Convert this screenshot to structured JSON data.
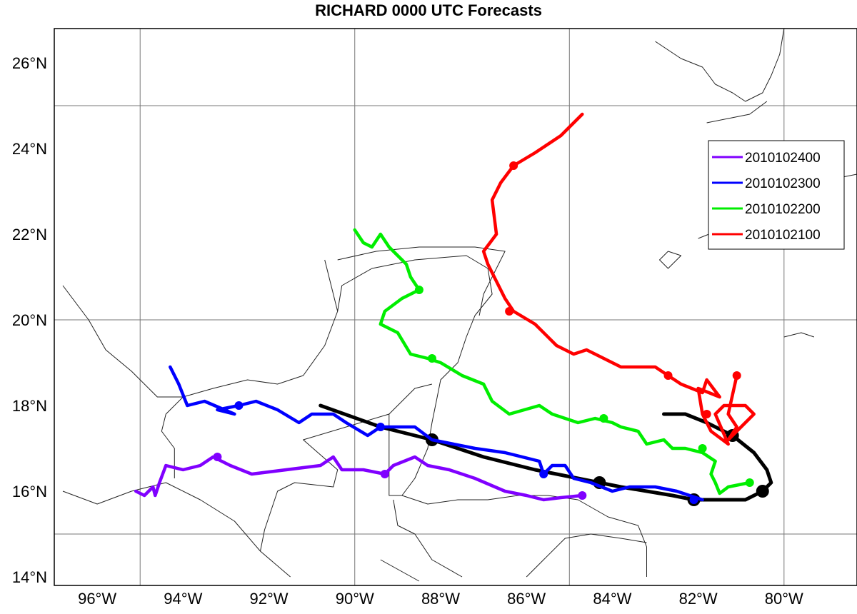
{
  "title": "RICHARD 0000 UTC Forecasts",
  "chart_data": {
    "type": "map-tracks",
    "title": "RICHARD 0000 UTC Forecasts",
    "projection": "lat-lon",
    "xlim": [
      -97.0,
      -78.3
    ],
    "ylim": [
      13.8,
      26.8
    ],
    "x_ticks": [
      {
        "value": -96,
        "label": "96°W"
      },
      {
        "value": -94,
        "label": "94°W"
      },
      {
        "value": -92,
        "label": "92°W"
      },
      {
        "value": -90,
        "label": "90°W"
      },
      {
        "value": -88,
        "label": "88°W"
      },
      {
        "value": -86,
        "label": "86°W"
      },
      {
        "value": -84,
        "label": "84°W"
      },
      {
        "value": -82,
        "label": "82°W"
      },
      {
        "value": -80,
        "label": "80°W"
      }
    ],
    "y_ticks": [
      {
        "value": 14,
        "label": "14°N"
      },
      {
        "value": 16,
        "label": "16°N"
      },
      {
        "value": 18,
        "label": "18°N"
      },
      {
        "value": 20,
        "label": "20°N"
      },
      {
        "value": 22,
        "label": "22°N"
      },
      {
        "value": 24,
        "label": "24°N"
      },
      {
        "value": 26,
        "label": "26°N"
      }
    ],
    "grid": {
      "lon": [
        -95,
        -90,
        -85,
        -80
      ],
      "lat": [
        15,
        20,
        25
      ]
    },
    "legend_position": "top-right",
    "best_track": {
      "color": "#000000",
      "points": [
        [
          -82.8,
          17.8
        ],
        [
          -82.3,
          17.8
        ],
        [
          -81.8,
          17.6
        ],
        [
          -81.2,
          17.3
        ],
        [
          -80.7,
          16.9
        ],
        [
          -80.4,
          16.5
        ],
        [
          -80.3,
          16.2
        ],
        [
          -80.5,
          16.0
        ],
        [
          -80.9,
          15.8
        ],
        [
          -82.1,
          15.8
        ],
        [
          -82.6,
          15.9
        ],
        [
          -83.8,
          16.1
        ],
        [
          -84.3,
          16.2
        ],
        [
          -85.8,
          16.5
        ],
        [
          -87.0,
          16.8
        ],
        [
          -88.2,
          17.2
        ],
        [
          -89.4,
          17.5
        ],
        [
          -90.8,
          18.0
        ]
      ],
      "markers": [
        [
          -81.2,
          17.3
        ],
        [
          -80.5,
          16.0
        ],
        [
          -82.1,
          15.8
        ],
        [
          -84.3,
          16.2
        ],
        [
          -88.2,
          17.2
        ]
      ]
    },
    "series": [
      {
        "name": "2010102400",
        "color": "#8000ff",
        "points": [
          [
            -84.7,
            15.9
          ],
          [
            -85.2,
            15.85
          ],
          [
            -85.6,
            15.8
          ],
          [
            -86.0,
            15.9
          ],
          [
            -86.5,
            16.0
          ],
          [
            -87.2,
            16.3
          ],
          [
            -87.8,
            16.5
          ],
          [
            -88.3,
            16.6
          ],
          [
            -88.6,
            16.8
          ],
          [
            -89.1,
            16.6
          ],
          [
            -89.3,
            16.4
          ],
          [
            -89.8,
            16.5
          ],
          [
            -90.3,
            16.5
          ],
          [
            -90.5,
            16.8
          ],
          [
            -90.8,
            16.6
          ],
          [
            -92.4,
            16.4
          ],
          [
            -92.9,
            16.6
          ],
          [
            -93.3,
            16.8
          ],
          [
            -93.6,
            16.6
          ],
          [
            -94.0,
            16.5
          ],
          [
            -94.4,
            16.6
          ],
          [
            -94.55,
            16.2
          ],
          [
            -94.65,
            15.9
          ],
          [
            -94.7,
            16.1
          ],
          [
            -94.9,
            15.9
          ],
          [
            -95.1,
            16.0
          ]
        ],
        "markers": [
          [
            -84.7,
            15.9
          ],
          [
            -89.3,
            16.4
          ],
          [
            -93.2,
            16.8
          ]
        ]
      },
      {
        "name": "2010102300",
        "color": "#0000ff",
        "points": [
          [
            -81.9,
            15.8
          ],
          [
            -82.2,
            15.9
          ],
          [
            -82.5,
            16.0
          ],
          [
            -83.0,
            16.1
          ],
          [
            -83.6,
            16.1
          ],
          [
            -84.0,
            16.0
          ],
          [
            -84.5,
            16.2
          ],
          [
            -84.9,
            16.3
          ],
          [
            -85.1,
            16.6
          ],
          [
            -85.4,
            16.6
          ],
          [
            -85.6,
            16.4
          ],
          [
            -85.7,
            16.7
          ],
          [
            -86.5,
            16.9
          ],
          [
            -87.2,
            17.0
          ],
          [
            -88.2,
            17.2
          ],
          [
            -88.6,
            17.5
          ],
          [
            -89.4,
            17.5
          ],
          [
            -89.7,
            17.3
          ],
          [
            -90.2,
            17.6
          ],
          [
            -90.5,
            17.8
          ],
          [
            -91.0,
            17.8
          ],
          [
            -91.3,
            17.6
          ],
          [
            -91.8,
            17.9
          ],
          [
            -92.3,
            18.1
          ],
          [
            -92.7,
            18.0
          ],
          [
            -93.2,
            17.9
          ],
          [
            -92.8,
            17.8
          ],
          [
            -93.5,
            18.1
          ],
          [
            -93.9,
            18.0
          ],
          [
            -94.1,
            18.5
          ],
          [
            -94.3,
            18.9
          ]
        ],
        "markers": [
          [
            -82.1,
            15.8
          ],
          [
            -85.6,
            16.4
          ],
          [
            -89.4,
            17.5
          ],
          [
            -92.7,
            18.0
          ]
        ]
      },
      {
        "name": "2010102200",
        "color": "#00ee00",
        "points": [
          [
            -80.8,
            16.2
          ],
          [
            -81.3,
            16.1
          ],
          [
            -81.5,
            15.95
          ],
          [
            -81.6,
            16.2
          ],
          [
            -81.7,
            16.4
          ],
          [
            -81.6,
            16.7
          ],
          [
            -81.9,
            16.9
          ],
          [
            -82.3,
            17.0
          ],
          [
            -82.6,
            17.0
          ],
          [
            -82.8,
            17.2
          ],
          [
            -83.2,
            17.1
          ],
          [
            -83.4,
            17.4
          ],
          [
            -83.8,
            17.5
          ],
          [
            -84.0,
            17.6
          ],
          [
            -84.4,
            17.7
          ],
          [
            -84.8,
            17.6
          ],
          [
            -85.4,
            17.8
          ],
          [
            -85.7,
            18.0
          ],
          [
            -86.4,
            17.8
          ],
          [
            -86.8,
            18.1
          ],
          [
            -87.0,
            18.5
          ],
          [
            -87.5,
            18.7
          ],
          [
            -88.0,
            19.0
          ],
          [
            -88.3,
            19.1
          ],
          [
            -88.7,
            19.2
          ],
          [
            -89.0,
            19.7
          ],
          [
            -89.2,
            19.8
          ],
          [
            -89.4,
            19.9
          ],
          [
            -89.3,
            20.2
          ],
          [
            -88.9,
            20.5
          ],
          [
            -88.5,
            20.7
          ],
          [
            -88.7,
            21.0
          ],
          [
            -88.8,
            21.3
          ],
          [
            -89.2,
            21.7
          ],
          [
            -89.4,
            22.0
          ],
          [
            -89.6,
            21.7
          ],
          [
            -89.8,
            21.8
          ],
          [
            -90.0,
            22.1
          ]
        ],
        "markers": [
          [
            -80.8,
            16.2
          ],
          [
            -81.9,
            17.0
          ],
          [
            -84.2,
            17.7
          ],
          [
            -88.2,
            19.1
          ],
          [
            -88.5,
            20.7
          ]
        ]
      },
      {
        "name": "2010102100",
        "color": "#ff0000",
        "points": [
          [
            -81.1,
            18.7
          ],
          [
            -81.3,
            17.8
          ],
          [
            -81.1,
            17.5
          ],
          [
            -81.3,
            17.2
          ],
          [
            -81.0,
            17.5
          ],
          [
            -80.7,
            17.8
          ],
          [
            -80.9,
            18.0
          ],
          [
            -81.4,
            18.0
          ],
          [
            -81.6,
            17.8
          ],
          [
            -81.3,
            17.1
          ],
          [
            -81.7,
            17.4
          ],
          [
            -81.9,
            17.8
          ],
          [
            -82.0,
            18.4
          ],
          [
            -81.5,
            18.2
          ],
          [
            -81.8,
            18.6
          ],
          [
            -81.9,
            18.3
          ],
          [
            -82.4,
            18.5
          ],
          [
            -82.7,
            18.7
          ],
          [
            -83.0,
            18.9
          ],
          [
            -83.8,
            18.9
          ],
          [
            -84.2,
            19.1
          ],
          [
            -84.6,
            19.3
          ],
          [
            -84.9,
            19.2
          ],
          [
            -85.3,
            19.4
          ],
          [
            -85.8,
            19.9
          ],
          [
            -86.3,
            20.2
          ],
          [
            -86.5,
            20.5
          ],
          [
            -86.7,
            20.9
          ],
          [
            -86.9,
            21.3
          ],
          [
            -87.0,
            21.6
          ],
          [
            -86.7,
            22.0
          ],
          [
            -86.8,
            22.8
          ],
          [
            -86.6,
            23.2
          ],
          [
            -86.3,
            23.6
          ],
          [
            -85.8,
            23.9
          ],
          [
            -85.2,
            24.3
          ],
          [
            -84.7,
            24.8
          ]
        ],
        "markers": [
          [
            -81.1,
            18.7
          ],
          [
            -81.8,
            17.8
          ],
          [
            -82.7,
            18.7
          ],
          [
            -86.4,
            20.2
          ],
          [
            -86.3,
            23.6
          ]
        ]
      }
    ],
    "coastlines": [
      [
        [
          -96.8,
          20.8
        ],
        [
          -96.2,
          20.0
        ],
        [
          -95.8,
          19.3
        ],
        [
          -95.2,
          18.8
        ],
        [
          -94.6,
          18.2
        ],
        [
          -94.0,
          18.2
        ],
        [
          -93.3,
          18.4
        ],
        [
          -92.5,
          18.6
        ],
        [
          -91.8,
          18.5
        ],
        [
          -91.2,
          18.7
        ],
        [
          -90.7,
          19.4
        ],
        [
          -90.4,
          20.2
        ],
        [
          -90.3,
          20.8
        ],
        [
          -89.6,
          21.2
        ],
        [
          -88.6,
          21.4
        ],
        [
          -87.4,
          21.5
        ],
        [
          -86.9,
          21.2
        ],
        [
          -86.8,
          20.6
        ],
        [
          -87.2,
          20.1
        ],
        [
          -87.4,
          19.6
        ],
        [
          -87.6,
          19.0
        ],
        [
          -88.0,
          18.6
        ],
        [
          -88.1,
          18.1
        ],
        [
          -88.2,
          17.6
        ],
        [
          -88.3,
          17.0
        ],
        [
          -88.6,
          16.3
        ],
        [
          -88.9,
          15.9
        ],
        [
          -88.3,
          15.7
        ],
        [
          -87.6,
          15.8
        ],
        [
          -86.9,
          15.8
        ],
        [
          -86.2,
          15.9
        ],
        [
          -85.5,
          15.9
        ],
        [
          -84.8,
          15.8
        ],
        [
          -84.1,
          15.4
        ],
        [
          -83.4,
          15.2
        ],
        [
          -83.2,
          14.7
        ],
        [
          -83.2,
          14.0
        ]
      ],
      [
        [
          -96.8,
          16.0
        ],
        [
          -96.0,
          15.7
        ],
        [
          -95.2,
          16.0
        ],
        [
          -94.4,
          16.2
        ],
        [
          -93.6,
          15.8
        ],
        [
          -92.8,
          15.3
        ],
        [
          -92.2,
          14.6
        ],
        [
          -91.5,
          14.0
        ]
      ]
    ],
    "borders": [
      [
        [
          -94.0,
          18.2
        ],
        [
          -94.4,
          17.8
        ],
        [
          -94.5,
          17.4
        ],
        [
          -94.2,
          17.0
        ],
        [
          -94.2,
          16.3
        ]
      ],
      [
        [
          -92.2,
          14.6
        ],
        [
          -92.1,
          15.1
        ],
        [
          -91.8,
          16.0
        ],
        [
          -91.4,
          16.2
        ],
        [
          -90.5,
          16.1
        ],
        [
          -90.4,
          16.5
        ],
        [
          -91.2,
          17.2
        ],
        [
          -89.2,
          17.8
        ],
        [
          -89.2,
          17.0
        ],
        [
          -89.2,
          15.9
        ],
        [
          -88.9,
          15.9
        ]
      ],
      [
        [
          -90.4,
          20.2
        ],
        [
          -90.7,
          21.4
        ]
      ],
      [
        [
          -89.2,
          17.8
        ],
        [
          -88.6,
          18.4
        ],
        [
          -88.2,
          18.5
        ]
      ],
      [
        [
          -90.4,
          21.4
        ],
        [
          -89.5,
          21.6
        ],
        [
          -88.5,
          21.7
        ],
        [
          -87.2,
          21.7
        ],
        [
          -86.5,
          21.6
        ],
        [
          -87.0,
          20.6
        ],
        [
          -87.1,
          20.1
        ]
      ],
      [
        [
          -89.1,
          15.8
        ],
        [
          -89.0,
          15.2
        ],
        [
          -88.6,
          15.0
        ],
        [
          -88.2,
          14.4
        ],
        [
          -87.5,
          14.0
        ]
      ],
      [
        [
          -89.4,
          14.4
        ],
        [
          -88.5,
          13.9
        ]
      ],
      [
        [
          -86.0,
          14.0
        ],
        [
          -85.6,
          14.4
        ],
        [
          -85.1,
          14.9
        ],
        [
          -84.5,
          15.0
        ],
        [
          -83.8,
          14.9
        ],
        [
          -83.2,
          14.8
        ]
      ]
    ],
    "florida": [
      [
        -83.0,
        26.5
      ],
      [
        -82.4,
        26.1
      ],
      [
        -81.9,
        25.9
      ],
      [
        -81.6,
        25.5
      ],
      [
        -81.2,
        25.3
      ],
      [
        -80.9,
        25.1
      ],
      [
        -80.5,
        25.3
      ],
      [
        -80.3,
        25.7
      ],
      [
        -80.1,
        26.2
      ],
      [
        -80.0,
        26.8
      ]
    ],
    "florida_keys": [
      [
        -81.8,
        24.6
      ],
      [
        -81.3,
        24.7
      ],
      [
        -80.8,
        24.8
      ],
      [
        -80.4,
        25.1
      ]
    ],
    "cuba": [
      [
        -82.0,
        21.9
      ],
      [
        -81.5,
        22.1
      ],
      [
        -80.8,
        22.5
      ],
      [
        -80.3,
        22.9
      ],
      [
        -79.6,
        23.1
      ],
      [
        -78.8,
        23.3
      ],
      [
        -78.3,
        23.4
      ]
    ],
    "isla_juventud": [
      [
        -82.7,
        21.6
      ],
      [
        -82.9,
        21.4
      ],
      [
        -82.7,
        21.2
      ],
      [
        -82.4,
        21.5
      ],
      [
        -82.7,
        21.6
      ]
    ],
    "caribbean_islands": [
      [
        -80.0,
        19.6
      ],
      [
        -79.6,
        19.7
      ],
      [
        -79.3,
        19.6
      ]
    ]
  }
}
